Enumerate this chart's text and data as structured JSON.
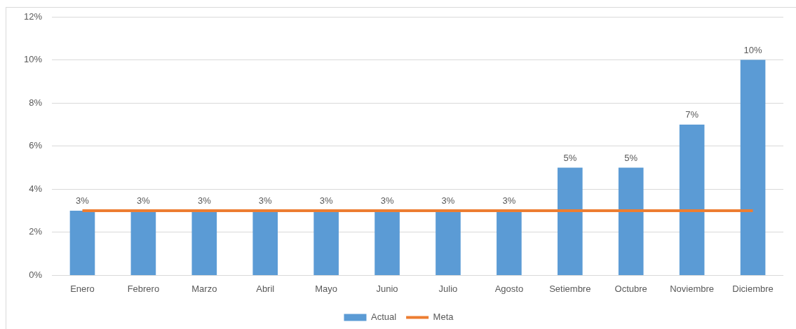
{
  "chart_data": {
    "type": "bar",
    "categories": [
      "Enero",
      "Febrero",
      "Marzo",
      "Abril",
      "Mayo",
      "Junio",
      "Julio",
      "Agosto",
      "Setiembre",
      "Octubre",
      "Noviembre",
      "Diciembre"
    ],
    "series": [
      {
        "name": "Actual",
        "color": "#5b9bd5",
        "values": [
          3,
          3,
          3,
          3,
          3,
          3,
          3,
          3,
          5,
          5,
          7,
          10
        ],
        "value_labels": [
          "3%",
          "3%",
          "3%",
          "3%",
          "3%",
          "3%",
          "3%",
          "3%",
          "5%",
          "5%",
          "7%",
          "10%"
        ]
      },
      {
        "name": "Meta",
        "type": "line",
        "color": "#ed7d31",
        "values": [
          3,
          3,
          3,
          3,
          3,
          3,
          3,
          3,
          3,
          3,
          3,
          3
        ]
      }
    ],
    "ylim": [
      0,
      12
    ],
    "yticks": [
      {
        "value": 0,
        "label": "0%"
      },
      {
        "value": 2,
        "label": "2%"
      },
      {
        "value": 4,
        "label": "4%"
      },
      {
        "value": 6,
        "label": "6%"
      },
      {
        "value": 8,
        "label": "8%"
      },
      {
        "value": 10,
        "label": "10%"
      },
      {
        "value": 12,
        "label": "12%"
      }
    ],
    "grid": "y",
    "legend": "bottom"
  }
}
